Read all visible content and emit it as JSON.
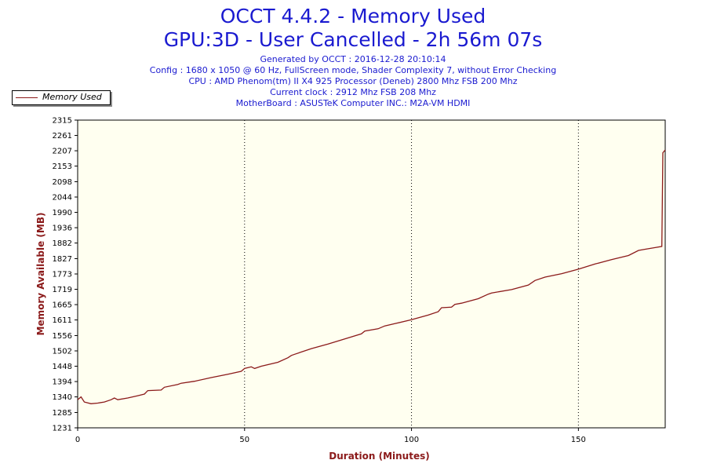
{
  "header": {
    "title": "OCCT 4.4.2 - Memory Used",
    "subtitle": "GPU:3D - User Cancelled - 2h 56m 07s",
    "info_lines": [
      "Generated by OCCT : 2016-12-28 20:10:14",
      "Config : 1680 x 1050 @ 60 Hz, FullScreen mode, Shader Complexity 7, without Error Checking",
      "CPU : AMD Phenom(tm) II X4 925 Processor (Deneb) 2800 Mhz FSB 200 Mhz",
      "Current clock : 2912 Mhz FSB 208 Mhz",
      "MotherBoard : ASUSTeK Computer INC.: M2A-VM HDMI"
    ]
  },
  "colors": {
    "title": "#1a1ad0",
    "series": "#8b1a1a",
    "plot_background": "#fffff0",
    "axis_label": "#8b1a1a"
  },
  "chart_data": {
    "type": "line",
    "xlabel": "Duration (Minutes)",
    "ylabel": "Memory Available (MB)",
    "xlim": [
      0,
      176
    ],
    "ylim": [
      1231,
      2315
    ],
    "x_ticks": [
      0,
      50,
      100,
      150
    ],
    "y_ticks": [
      1231,
      1285,
      1340,
      1394,
      1448,
      1502,
      1556,
      1611,
      1665,
      1719,
      1773,
      1827,
      1882,
      1936,
      1990,
      2044,
      2098,
      2153,
      2207,
      2261,
      2315
    ],
    "grid": "vertical dotted",
    "legend": "top-left",
    "series": [
      {
        "name": "Memory Used",
        "x": [
          0,
          1,
          2,
          4,
          6,
          8,
          10,
          11,
          12,
          15,
          18,
          20,
          21,
          25,
          26,
          30,
          31,
          35,
          40,
          45,
          49,
          50,
          52,
          53,
          55,
          60,
          63,
          64,
          65,
          70,
          75,
          80,
          85,
          86,
          90,
          92,
          95,
          100,
          105,
          108,
          109,
          112,
          113,
          115,
          120,
          123,
          124,
          125,
          130,
          135,
          137,
          140,
          145,
          150,
          155,
          160,
          165,
          168,
          170,
          173,
          175,
          175.3,
          176
        ],
        "y": [
          1330,
          1340,
          1322,
          1316,
          1318,
          1322,
          1330,
          1336,
          1330,
          1336,
          1344,
          1350,
          1362,
          1364,
          1374,
          1384,
          1388,
          1395,
          1408,
          1420,
          1430,
          1440,
          1446,
          1440,
          1448,
          1462,
          1478,
          1486,
          1490,
          1510,
          1526,
          1544,
          1562,
          1572,
          1580,
          1590,
          1598,
          1612,
          1628,
          1640,
          1654,
          1656,
          1666,
          1670,
          1686,
          1702,
          1706,
          1708,
          1718,
          1734,
          1750,
          1762,
          1774,
          1790,
          1808,
          1824,
          1838,
          1856,
          1860,
          1866,
          1870,
          2200,
          2210
        ]
      }
    ]
  }
}
